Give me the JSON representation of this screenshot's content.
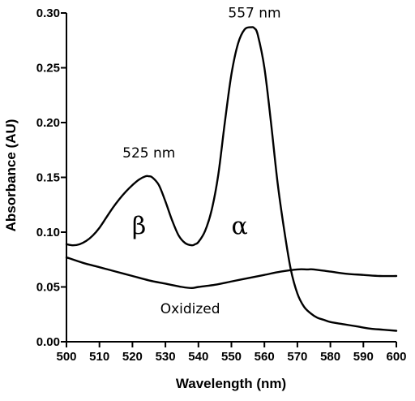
{
  "chart_data": {
    "type": "line",
    "xlabel": "Wavelength (nm)",
    "ylabel": "Absorbance (AU)",
    "xlim": [
      500,
      600
    ],
    "ylim": [
      0,
      0.3
    ],
    "x_ticks": [
      "500",
      "510",
      "520",
      "530",
      "540",
      "550",
      "560",
      "570",
      "580",
      "590",
      "600"
    ],
    "y_ticks": [
      "0.00",
      "0.05",
      "0.10",
      "0.15",
      "0.20",
      "0.25",
      "0.30"
    ],
    "grid": false,
    "legend": "none",
    "series": [
      {
        "x": [
          500,
          502,
          504,
          506,
          508,
          510,
          512,
          514,
          516,
          518,
          520,
          522,
          524,
          525,
          526,
          528,
          530,
          532,
          534,
          536,
          538,
          539,
          540,
          542,
          544,
          546,
          548,
          550,
          552,
          554,
          556,
          557,
          558,
          560,
          562,
          564,
          566,
          568,
          570,
          572,
          574,
          576,
          578,
          580,
          584,
          588,
          592,
          596,
          600
        ],
        "y": [
          0.089,
          0.088,
          0.089,
          0.092,
          0.097,
          0.104,
          0.113,
          0.122,
          0.13,
          0.137,
          0.143,
          0.148,
          0.151,
          0.151,
          0.15,
          0.143,
          0.128,
          0.111,
          0.097,
          0.09,
          0.088,
          0.089,
          0.091,
          0.101,
          0.12,
          0.152,
          0.2,
          0.244,
          0.272,
          0.285,
          0.287,
          0.286,
          0.28,
          0.25,
          0.2,
          0.145,
          0.102,
          0.066,
          0.044,
          0.032,
          0.026,
          0.022,
          0.02,
          0.018,
          0.016,
          0.014,
          0.012,
          0.011,
          0.01
        ]
      },
      {
        "name": "Oxidized",
        "x": [
          500,
          505,
          510,
          515,
          520,
          525,
          530,
          535,
          538,
          540,
          545,
          550,
          555,
          560,
          565,
          570,
          573,
          575,
          580,
          585,
          590,
          595,
          600
        ],
        "y": [
          0.077,
          0.072,
          0.068,
          0.064,
          0.06,
          0.056,
          0.053,
          0.05,
          0.049,
          0.05,
          0.052,
          0.055,
          0.058,
          0.061,
          0.064,
          0.066,
          0.066,
          0.066,
          0.064,
          0.062,
          0.061,
          0.06,
          0.06
        ]
      }
    ],
    "annotations": [
      {
        "text": "557 nm",
        "x": 557,
        "y": 0.296
      },
      {
        "text": "525 nm",
        "x": 525,
        "y": 0.168
      },
      {
        "text": "β",
        "x": 522,
        "y": 0.098
      },
      {
        "text": "α",
        "x": 552.5,
        "y": 0.098
      },
      {
        "text": "Oxidized",
        "x": 537.5,
        "y": 0.026
      }
    ]
  }
}
